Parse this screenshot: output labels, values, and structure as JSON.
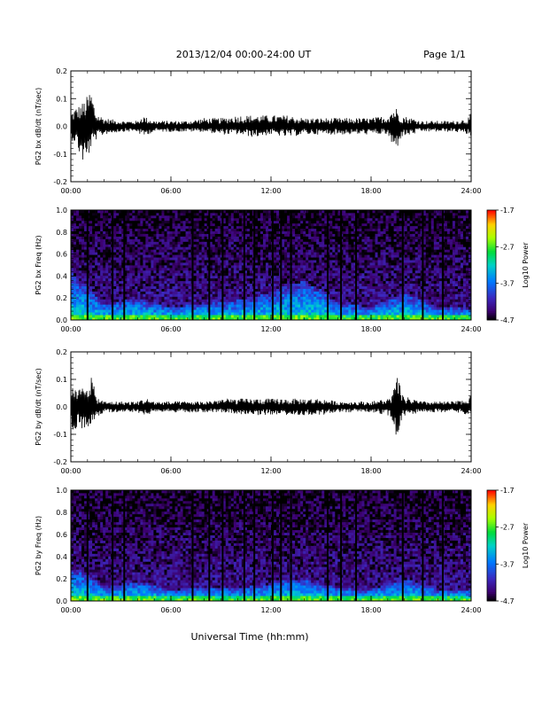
{
  "header": {
    "title": "2013/12/04  00:00-24:00 UT",
    "page": "Page 1/1"
  },
  "xaxis": {
    "label": "Universal Time (hh:mm)",
    "range_hours": [
      0,
      24
    ],
    "ticks": [
      0,
      6,
      12,
      18,
      24
    ],
    "tick_labels": [
      "00:00",
      "06:00",
      "12:00",
      "18:00",
      "24:00"
    ]
  },
  "colorbar": {
    "label": "Log10 Power",
    "range": [
      -4.7,
      -1.7
    ],
    "ticks": [
      -4.7,
      -3.7,
      -2.7,
      -1.7
    ],
    "tick_labels": [
      "-4.7",
      "-3.7",
      "-2.7",
      "-1.7"
    ]
  },
  "chart_data": [
    {
      "type": "line",
      "name": "bx-waveform",
      "ylabel": "PG2 bx dB/dt (nT/sec)",
      "ylim": [
        -0.2,
        0.2
      ],
      "yticks": [
        -0.2,
        -0.1,
        0.0,
        0.1,
        0.2
      ],
      "ytick_labels": [
        "-0.2",
        "-0.1",
        "0.0",
        "0.1",
        "0.2"
      ],
      "envelope": {
        "hours": [
          0,
          0.3,
          0.6,
          0.9,
          1.2,
          1.5,
          2.0,
          3.0,
          4.0,
          4.3,
          4.6,
          5.0,
          6.0,
          7.0,
          8.0,
          9.0,
          10.0,
          11.0,
          12.0,
          13.0,
          14.0,
          15.0,
          16.0,
          17.0,
          18.0,
          19.0,
          19.2,
          19.5,
          19.8,
          20.5,
          21.0,
          22.0,
          23.0,
          23.8,
          24.0
        ],
        "max": [
          0.05,
          0.07,
          0.08,
          0.1,
          0.14,
          0.05,
          0.03,
          0.02,
          0.02,
          0.04,
          0.03,
          0.02,
          0.02,
          0.02,
          0.03,
          0.03,
          0.04,
          0.04,
          0.04,
          0.04,
          0.03,
          0.03,
          0.03,
          0.03,
          0.03,
          0.04,
          0.06,
          0.07,
          0.04,
          0.03,
          0.02,
          0.02,
          0.02,
          0.03,
          0.05
        ],
        "min": [
          -0.05,
          -0.06,
          -0.12,
          -0.15,
          -0.08,
          -0.05,
          -0.03,
          -0.02,
          -0.02,
          -0.04,
          -0.03,
          -0.02,
          -0.02,
          -0.02,
          -0.02,
          -0.03,
          -0.03,
          -0.04,
          -0.03,
          -0.04,
          -0.03,
          -0.03,
          -0.03,
          -0.03,
          -0.03,
          -0.03,
          -0.07,
          -0.09,
          -0.04,
          -0.03,
          -0.02,
          -0.02,
          -0.02,
          -0.03,
          -0.04
        ]
      }
    },
    {
      "type": "heatmap",
      "name": "bx-spectrogram",
      "ylabel": "PG2 bx Freq (Hz)",
      "ylim": [
        0,
        1.0
      ],
      "yticks": [
        0.0,
        0.2,
        0.4,
        0.6,
        0.8,
        1.0
      ],
      "ytick_labels": [
        "0.0",
        "0.2",
        "0.4",
        "0.6",
        "0.8",
        "1.0"
      ],
      "background_log_power": -4.3,
      "low_freq_enhancement": {
        "hours": [
          0,
          1,
          2,
          4,
          6,
          8,
          10,
          12,
          13,
          14,
          15,
          16,
          18,
          20,
          22,
          24
        ],
        "top_hz": [
          0.45,
          0.3,
          0.15,
          0.2,
          0.12,
          0.15,
          0.18,
          0.25,
          0.33,
          0.35,
          0.28,
          0.15,
          0.12,
          0.25,
          0.12,
          0.1
        ]
      },
      "data_gaps_hours": [
        1.0,
        2.5,
        3.2,
        7.3,
        8.3,
        9.1,
        10.4,
        11.0,
        12.1,
        12.6,
        13.2,
        15.4,
        16.2,
        17.1,
        19.9,
        21.1,
        22.3
      ]
    },
    {
      "type": "line",
      "name": "by-waveform",
      "ylabel": "PG2 by dB/dt (nT/sec)",
      "ylim": [
        -0.2,
        0.2
      ],
      "yticks": [
        -0.2,
        -0.1,
        0.0,
        0.1,
        0.2
      ],
      "ytick_labels": [
        "-0.2",
        "-0.1",
        "0.0",
        "0.1",
        "0.2"
      ],
      "envelope": {
        "hours": [
          0,
          0.3,
          0.6,
          0.9,
          1.2,
          1.5,
          2.0,
          3.0,
          4.0,
          4.3,
          4.6,
          5.0,
          6.0,
          7.0,
          8.0,
          9.0,
          10.0,
          11.0,
          12.0,
          13.0,
          14.0,
          15.0,
          16.0,
          17.0,
          18.0,
          19.0,
          19.3,
          19.6,
          19.9,
          20.5,
          21.0,
          22.0,
          23.0,
          23.8,
          24.0
        ],
        "max": [
          0.08,
          0.06,
          0.07,
          0.09,
          0.13,
          0.04,
          0.02,
          0.02,
          0.02,
          0.03,
          0.03,
          0.02,
          0.02,
          0.02,
          0.02,
          0.03,
          0.03,
          0.03,
          0.03,
          0.03,
          0.03,
          0.03,
          0.02,
          0.02,
          0.02,
          0.03,
          0.05,
          0.12,
          0.04,
          0.03,
          0.02,
          0.02,
          0.02,
          0.03,
          0.06
        ],
        "min": [
          -0.09,
          -0.1,
          -0.08,
          -0.09,
          -0.07,
          -0.04,
          -0.02,
          -0.02,
          -0.02,
          -0.03,
          -0.03,
          -0.02,
          -0.02,
          -0.02,
          -0.02,
          -0.02,
          -0.03,
          -0.03,
          -0.03,
          -0.03,
          -0.03,
          -0.03,
          -0.02,
          -0.02,
          -0.02,
          -0.03,
          -0.06,
          -0.16,
          -0.04,
          -0.03,
          -0.02,
          -0.02,
          -0.02,
          -0.03,
          -0.04
        ]
      }
    },
    {
      "type": "heatmap",
      "name": "by-spectrogram",
      "ylabel": "PG2 by Freq (Hz)",
      "ylim": [
        0,
        1.0
      ],
      "yticks": [
        0.0,
        0.2,
        0.4,
        0.6,
        0.8,
        1.0
      ],
      "ytick_labels": [
        "0.0",
        "0.2",
        "0.4",
        "0.6",
        "0.8",
        "1.0"
      ],
      "background_log_power": -4.3,
      "low_freq_enhancement": {
        "hours": [
          0,
          1,
          2,
          4,
          6,
          8,
          10,
          12,
          13,
          14,
          15,
          16,
          18,
          20,
          22,
          24
        ],
        "top_hz": [
          0.3,
          0.25,
          0.12,
          0.18,
          0.1,
          0.12,
          0.12,
          0.15,
          0.2,
          0.2,
          0.15,
          0.12,
          0.1,
          0.2,
          0.1,
          0.1
        ]
      },
      "data_gaps_hours": [
        1.0,
        2.5,
        3.2,
        7.3,
        8.3,
        9.1,
        10.4,
        11.0,
        12.1,
        12.6,
        13.2,
        15.4,
        16.2,
        17.1,
        19.9,
        21.1,
        22.3
      ]
    }
  ]
}
